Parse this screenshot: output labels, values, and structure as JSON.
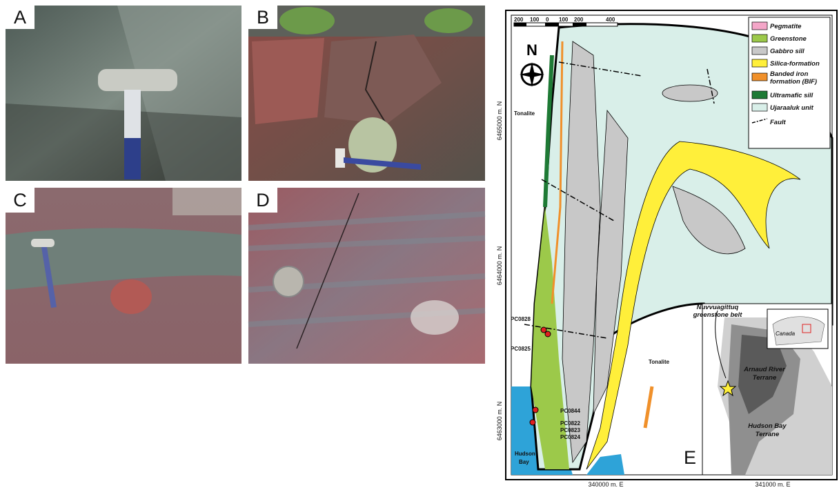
{
  "panels": {
    "a": "A",
    "b": "B",
    "c": "C",
    "d": "D",
    "e": "E"
  },
  "map": {
    "scale": [
      "200",
      "100",
      "0",
      "100",
      "200",
      "400"
    ],
    "north": "N",
    "places": {
      "tonalite_west": "Tonalite",
      "tonalite_east": "Tonalite",
      "hudson_bay": [
        "Hudson",
        "Bay"
      ]
    },
    "northings": [
      "6465000 m. N",
      "6464000 m. N",
      "6463000 m. N"
    ],
    "eastings": [
      "340000 m. E",
      "341000 m. E"
    ],
    "samples": [
      "PC0828",
      "PC0825",
      "PC0844",
      "PC0822",
      "PC0823",
      "PC0824"
    ],
    "legend": [
      [
        "Pegmatite"
      ],
      [
        "Greenstone"
      ],
      [
        "Gabbro sill"
      ],
      [
        "Silica-formation"
      ],
      [
        "Banded iron",
        "formation (BIF)"
      ],
      [
        "Ultramafic sill"
      ],
      [
        "Ujaraaluk unit"
      ],
      [
        "Fault"
      ]
    ],
    "inset": {
      "belt": [
        "Nuvvuagittuq",
        "greenstone belt"
      ],
      "canada": "Canada",
      "arnaud": [
        "Arnaud River",
        "Terrane"
      ],
      "hudson": [
        "Hudson Bay",
        "Terrane"
      ]
    }
  }
}
